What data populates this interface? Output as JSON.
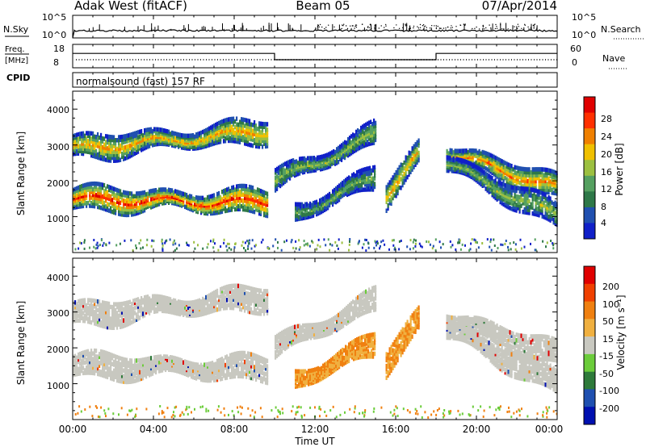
{
  "header": {
    "station": "Adak West (fitACF)",
    "beam": "Beam 05",
    "date": "07/Apr/2014"
  },
  "nsky": {
    "label": "N.Sky",
    "ticks": [
      "10^5",
      "10^0"
    ]
  },
  "nsearch": {
    "label": "N.Search",
    "ticks": [
      "10^5",
      "10^0"
    ]
  },
  "freq": {
    "label_top": "Freq.",
    "label_unit": "[MHz]",
    "ticks": [
      "18",
      "8"
    ],
    "level_mhz": [
      {
        "from": 0,
        "to": 10,
        "value": 14
      },
      {
        "from": 10,
        "to": 18,
        "value": 10.5
      },
      {
        "from": 18,
        "to": 24,
        "value": 14
      }
    ]
  },
  "nave": {
    "label": "Nave",
    "ticks": [
      "60",
      "0"
    ]
  },
  "cpid": {
    "label": "CPID",
    "program": "normalsound (fast) 157 RF"
  },
  "chart_data": [
    {
      "type": "heatmap",
      "name": "power",
      "ylabel": "Slant Range [km]",
      "y_ticks": [
        "4000",
        "3000",
        "2000",
        "1000"
      ],
      "ylim": [
        0,
        4500
      ],
      "colorbar": {
        "label": "Power [dB]",
        "ticks": [
          "28",
          "24",
          "20",
          "16",
          "12",
          "8",
          "4"
        ],
        "range": [
          0,
          32
        ]
      },
      "echo_bands": [
        {
          "t_start": 0,
          "t_end": 9.7,
          "range_start_km": 1500,
          "range_end_km": 1400,
          "peak_db": 30
        },
        {
          "t_start": 0,
          "t_end": 9.7,
          "range_start_km": 2900,
          "range_end_km": 3400,
          "peak_db": 24
        },
        {
          "t_start": 10,
          "t_end": 15,
          "range_start_km": 2000,
          "range_end_km": 3300,
          "peak_db": 18
        },
        {
          "t_start": 11,
          "t_end": 15,
          "range_start_km": 1100,
          "range_end_km": 2100,
          "peak_db": 16
        },
        {
          "t_start": 15.5,
          "t_end": 17.2,
          "range_start_km": 1600,
          "range_end_km": 2800,
          "peak_db": 24
        },
        {
          "t_start": 18.5,
          "t_end": 24,
          "range_start_km": 2800,
          "range_end_km": 1800,
          "peak_db": 26
        },
        {
          "t_start": 18.5,
          "t_end": 24,
          "range_start_km": 2500,
          "range_end_km": 1000,
          "peak_db": 18
        }
      ]
    },
    {
      "type": "heatmap",
      "name": "velocity",
      "ylabel": "Slant Range [km]",
      "y_ticks": [
        "4000",
        "3000",
        "2000",
        "1000"
      ],
      "ylim": [
        0,
        4500
      ],
      "xlabel": "Time UT",
      "x_ticks": [
        "00:00",
        "04:00",
        "08:00",
        "12:00",
        "16:00",
        "20:00",
        "00:00"
      ],
      "xlim_hours": [
        0,
        24
      ],
      "colorbar": {
        "label": "Velocity [m s⁻¹]",
        "ticks": [
          "200",
          "100",
          "50",
          "15",
          "-15",
          "-50",
          "-100",
          "-200"
        ]
      }
    }
  ],
  "colors": {
    "power_scale": [
      "#1020c8",
      "#2050b0",
      "#2e7848",
      "#55a060",
      "#9cc040",
      "#f0c000",
      "#f08000",
      "#ff3000",
      "#e00000"
    ],
    "velocity_scale": [
      "#0010b0",
      "#1f50b0",
      "#2e7a3a",
      "#6bcc3a",
      "#c8c8c0",
      "#f0b040",
      "#f08010",
      "#f04000",
      "#e00000"
    ],
    "ground_scatter": "#c8c8c0"
  }
}
